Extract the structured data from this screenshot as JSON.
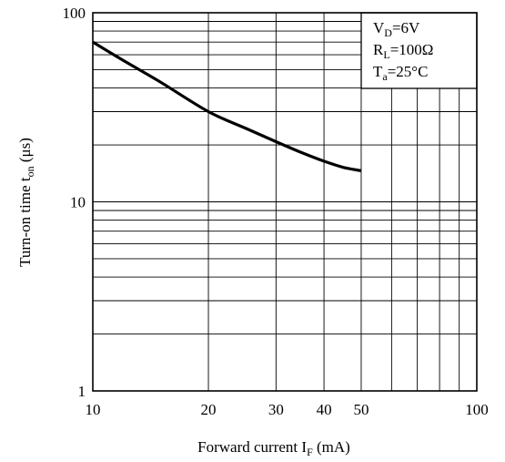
{
  "chart_data": {
    "type": "line",
    "x_scale": "log",
    "y_scale": "log",
    "xlim": [
      10,
      100
    ],
    "ylim": [
      1,
      100
    ],
    "grid": true,
    "xlabel": {
      "main": "Forward current I",
      "sub": "F",
      "unit": " (mA)"
    },
    "ylabel": {
      "main": "Turn-on time t",
      "sub": "on",
      "unit": " (μs)"
    },
    "x_tick_labels": [
      {
        "value": 10,
        "label": "10"
      },
      {
        "value": 20,
        "label": "20"
      },
      {
        "value": 30,
        "label": "30"
      },
      {
        "value": 40,
        "label": "40"
      },
      {
        "value": 50,
        "label": "50"
      },
      {
        "value": 100,
        "label": "100"
      }
    ],
    "y_tick_labels": [
      {
        "value": 1,
        "label": "1"
      },
      {
        "value": 10,
        "label": "10"
      },
      {
        "value": 100,
        "label": "100"
      }
    ],
    "conditions": [
      {
        "main": "V",
        "sub": "D",
        "rest": "=6V"
      },
      {
        "main": "R",
        "sub": "L",
        "rest": "=100Ω"
      },
      {
        "main": "T",
        "sub": "a",
        "rest": "=25°C"
      }
    ],
    "series": [
      {
        "x": [
          10,
          12,
          15,
          20,
          25,
          30,
          35,
          40,
          45,
          50
        ],
        "y": [
          70,
          56,
          43,
          30,
          24.5,
          20.8,
          18.2,
          16.4,
          15.2,
          14.6
        ]
      }
    ]
  }
}
